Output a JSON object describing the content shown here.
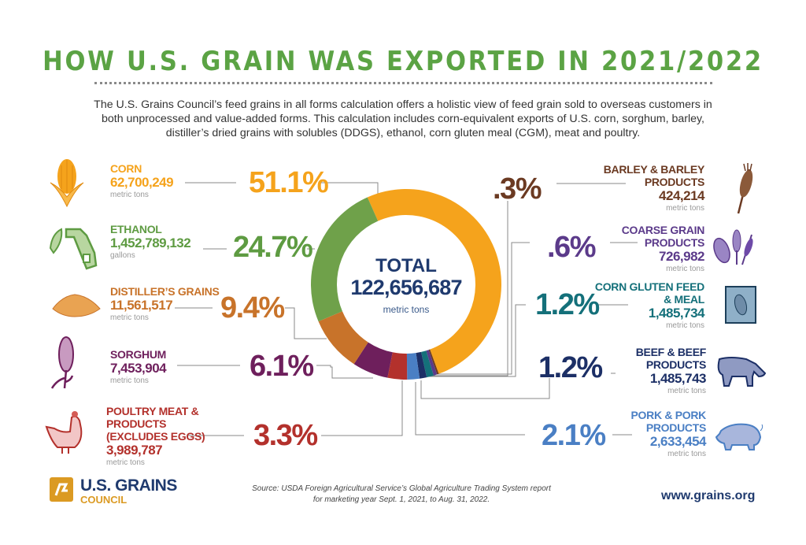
{
  "title": "HOW U.S. GRAIN WAS EXPORTED IN 2021/2022",
  "intro": "The U.S. Grains Council’s feed grains in all forms calculation offers a holistic view of feed grain sold to overseas customers in both unprocessed and value-added forms. This calculation includes corn-equivalent exports of U.S. corn, sorghum, barley, distiller’s dried grains with solubles (DDGS), ethanol, corn gluten meal (CGM), meat and poultry.",
  "center": {
    "label": "TOTAL",
    "value": "122,656,687",
    "unit": "metric tons"
  },
  "items": [
    {
      "name": "CORN",
      "value": "62,700,249",
      "unit": "metric tons",
      "pct": "51.1%",
      "color": "#F5A31C",
      "icon": "corn-icon"
    },
    {
      "name": "ETHANOL",
      "value": "1,452,789,132",
      "unit": "gallons",
      "pct": "24.7%",
      "color": "#5E9B42",
      "icon": "fuel-pump-leaf-icon"
    },
    {
      "name": "DISTILLER’S GRAINS",
      "value": "11,561,517",
      "unit": "metric tons",
      "pct": "9.4%",
      "color": "#C8732A",
      "icon": "grain-pile-icon"
    },
    {
      "name": "SORGHUM",
      "value": "7,453,904",
      "unit": "metric tons",
      "pct": "6.1%",
      "color": "#6E1F5C",
      "icon": "sorghum-icon"
    },
    {
      "name": "POULTRY MEAT & PRODUCTS (EXCLUDES EGGS)",
      "value": "3,989,787",
      "unit": "metric tons",
      "pct": "3.3%",
      "color": "#B3312C",
      "icon": "chicken-icon"
    },
    {
      "name": "BARLEY & BARLEY PRODUCTS",
      "value": "424,214",
      "unit": "metric tons",
      "pct": ".3%",
      "color": "#6B3A22",
      "icon": "wheat-icon"
    },
    {
      "name": "COARSE GRAIN PRODUCTS",
      "value": "726,982",
      "unit": "metric tons",
      "pct": ".6%",
      "color": "#5B3A8A",
      "icon": "coarse-grains-icon"
    },
    {
      "name": "CORN GLUTEN FEED & MEAL",
      "value": "1,485,734",
      "unit": "metric tons",
      "pct": "1.2%",
      "color": "#14707A",
      "icon": "feed-bag-icon"
    },
    {
      "name": "BEEF & BEEF PRODUCTS",
      "value": "1,485,743",
      "unit": "metric tons",
      "pct": "1.2%",
      "color": "#1C2F66",
      "icon": "cow-icon"
    },
    {
      "name": "PORK & PORK PRODUCTS",
      "value": "2,633,454",
      "unit": "metric tons",
      "pct": "2.1%",
      "color": "#4A7FC4",
      "icon": "pig-icon"
    }
  ],
  "chart_data": {
    "type": "pie",
    "style": "donut",
    "categories": [
      "Corn",
      "Barley & Barley Products",
      "Coarse Grain Products",
      "Corn Gluten Feed & Meal",
      "Beef & Beef Products",
      "Pork & Pork Products",
      "Poultry Meat & Products",
      "Sorghum",
      "Distiller's Grains",
      "Ethanol"
    ],
    "values": [
      51.1,
      0.3,
      0.6,
      1.2,
      1.2,
      2.1,
      3.3,
      6.1,
      9.4,
      24.7
    ],
    "colors": [
      "#F5A31C",
      "#6B3A22",
      "#5B3A8A",
      "#14707A",
      "#1C2F66",
      "#4A7FC4",
      "#B3312C",
      "#6E1F5C",
      "#C8732A",
      "#6FA14A"
    ],
    "unit": "%"
  },
  "footer": {
    "logo_line1": "U.S. GRAINS",
    "logo_line2": "COUNCIL",
    "source_line1": "Source: USDA Foreign Agricultural Service’s Global Agriculture Trading System report",
    "source_line2": "for marketing year Sept. 1, 2021, to Aug. 31, 2022.",
    "website": "www.grains.org"
  }
}
